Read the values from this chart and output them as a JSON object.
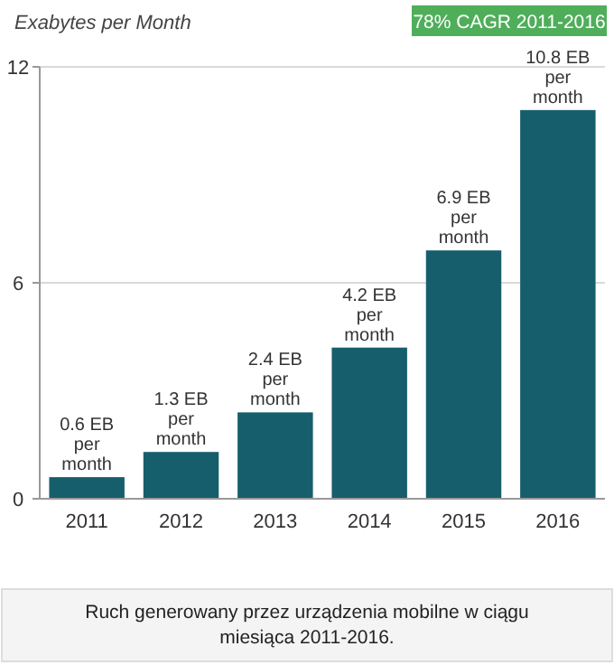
{
  "chart_data": {
    "type": "bar",
    "ylabel": "Exabytes per Month",
    "categories": [
      "2011",
      "2012",
      "2013",
      "2014",
      "2015",
      "2016"
    ],
    "values": [
      0.6,
      1.3,
      2.4,
      4.2,
      6.9,
      10.8
    ],
    "color": "#175e6c",
    "value_labels": [
      "0.6 EB\nper\nmonth",
      "1.3 EB\nper\nmonth",
      "2.4 EB\nper\nmonth",
      "4.2 EB\nper\nmonth",
      "6.9 EB\nper\nmonth",
      "10.8 EB\nper\nmonth"
    ],
    "ylim": [
      0,
      12
    ],
    "yticks": [
      0,
      6,
      12
    ],
    "grid": "y",
    "annotations": [
      "78% CAGR 2011-2016",
      "Ruch generowany przez urządzenia mobilne w ciągu miesiąca 2011-2016."
    ]
  }
}
